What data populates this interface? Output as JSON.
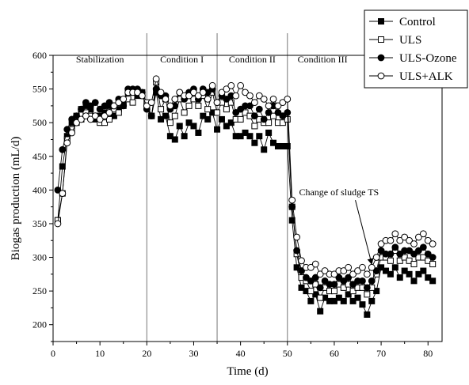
{
  "chart_data": {
    "type": "line",
    "xlabel": "Time (d)",
    "ylabel": "Biogas production (mL/d)",
    "xlim": [
      0,
      83
    ],
    "ylim": [
      175,
      600
    ],
    "xticks": [
      0,
      10,
      20,
      30,
      40,
      50,
      60,
      70,
      80
    ],
    "yticks": [
      200,
      250,
      300,
      350,
      400,
      450,
      500,
      550,
      600
    ],
    "grid": false,
    "legend_position": "top-right",
    "phase_boundaries": [
      20,
      35,
      50
    ],
    "phase_labels": [
      {
        "text": "Stabilization",
        "x": 10
      },
      {
        "text": "Condition I",
        "x": 27.5
      },
      {
        "text": "Condition II",
        "x": 42.5
      },
      {
        "text": "Condition III",
        "x": 57.5
      }
    ],
    "annotation": {
      "text": "Change of sludge TS",
      "target_x": 68,
      "target_y": 290,
      "text_x": 61,
      "text_y": 392
    },
    "x": [
      1,
      2,
      3,
      4,
      5,
      6,
      7,
      8,
      9,
      10,
      11,
      12,
      13,
      14,
      15,
      16,
      17,
      18,
      19,
      20,
      21,
      22,
      23,
      24,
      25,
      26,
      27,
      28,
      29,
      30,
      31,
      32,
      33,
      34,
      35,
      36,
      37,
      38,
      39,
      40,
      41,
      42,
      43,
      44,
      45,
      46,
      47,
      48,
      49,
      50,
      51,
      52,
      53,
      54,
      55,
      56,
      57,
      58,
      59,
      60,
      61,
      62,
      63,
      64,
      65,
      66,
      67,
      68,
      69,
      70,
      71,
      72,
      73,
      74,
      75,
      76,
      77,
      78,
      79,
      80,
      81
    ],
    "series": [
      {
        "name": "Control",
        "marker": "square-filled",
        "values": [
          355,
          435,
          480,
          500,
          510,
          520,
          525,
          520,
          505,
          510,
          515,
          525,
          510,
          520,
          530,
          545,
          545,
          540,
          540,
          525,
          510,
          545,
          505,
          510,
          480,
          475,
          495,
          480,
          500,
          495,
          485,
          510,
          505,
          515,
          490,
          505,
          495,
          500,
          480,
          480,
          485,
          480,
          470,
          480,
          460,
          485,
          470,
          465,
          465,
          465,
          355,
          285,
          255,
          250,
          235,
          245,
          220,
          240,
          235,
          235,
          240,
          235,
          245,
          235,
          240,
          230,
          215,
          235,
          250,
          285,
          280,
          275,
          285,
          270,
          280,
          275,
          265,
          275,
          280,
          270,
          265
        ]
      },
      {
        "name": "ULS",
        "marker": "square-open",
        "values": [
          355,
          395,
          475,
          490,
          500,
          505,
          515,
          510,
          510,
          500,
          500,
          505,
          520,
          515,
          525,
          535,
          530,
          545,
          545,
          530,
          510,
          560,
          520,
          535,
          500,
          510,
          535,
          515,
          525,
          535,
          525,
          540,
          520,
          545,
          515,
          530,
          520,
          530,
          505,
          505,
          515,
          510,
          495,
          505,
          500,
          500,
          510,
          500,
          500,
          505,
          375,
          305,
          270,
          265,
          250,
          260,
          240,
          255,
          250,
          250,
          260,
          255,
          260,
          250,
          255,
          255,
          245,
          255,
          275,
          300,
          300,
          295,
          310,
          295,
          300,
          295,
          290,
          300,
          300,
          295,
          290
        ]
      },
      {
        "name": "ULS-Ozone",
        "marker": "circle-filled",
        "values": [
          400,
          460,
          490,
          505,
          510,
          520,
          530,
          525,
          530,
          520,
          525,
          530,
          525,
          535,
          525,
          550,
          550,
          550,
          545,
          520,
          510,
          550,
          540,
          540,
          520,
          525,
          545,
          535,
          545,
          550,
          535,
          550,
          545,
          550,
          530,
          540,
          535,
          540,
          515,
          520,
          525,
          525,
          510,
          520,
          505,
          515,
          525,
          515,
          510,
          515,
          375,
          310,
          280,
          270,
          265,
          270,
          255,
          265,
          260,
          260,
          270,
          265,
          270,
          260,
          265,
          265,
          255,
          265,
          280,
          310,
          305,
          305,
          315,
          305,
          310,
          310,
          305,
          310,
          315,
          305,
          300
        ]
      },
      {
        "name": "ULS+ALK",
        "marker": "circle-open",
        "values": [
          350,
          395,
          470,
          485,
          500,
          505,
          510,
          505,
          510,
          505,
          510,
          515,
          525,
          530,
          535,
          545,
          545,
          545,
          540,
          525,
          530,
          565,
          545,
          535,
          525,
          535,
          545,
          540,
          540,
          545,
          540,
          545,
          535,
          555,
          530,
          545,
          550,
          555,
          540,
          555,
          545,
          540,
          530,
          540,
          535,
          525,
          535,
          525,
          530,
          535,
          385,
          330,
          295,
          285,
          285,
          290,
          275,
          280,
          275,
          275,
          280,
          280,
          285,
          275,
          280,
          285,
          275,
          285,
          300,
          320,
          325,
          325,
          335,
          325,
          330,
          325,
          320,
          330,
          335,
          325,
          320
        ]
      }
    ]
  }
}
